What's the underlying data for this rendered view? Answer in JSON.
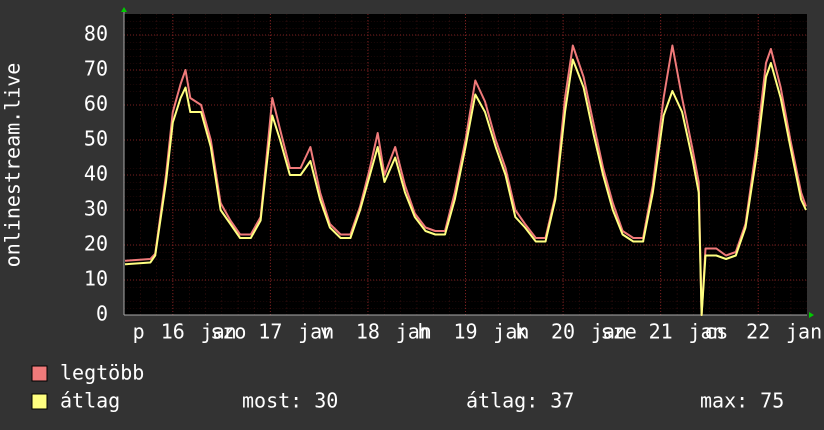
{
  "chart_data": {
    "type": "line",
    "y_label": "onlinestream.live",
    "x": [
      15.51,
      15.77,
      15.82,
      15.93,
      16.0,
      16.08,
      16.13,
      16.18,
      16.29,
      16.39,
      16.49,
      16.59,
      16.69,
      16.8,
      16.9,
      16.95,
      17.02,
      17.1,
      17.2,
      17.31,
      17.41,
      17.51,
      17.61,
      17.72,
      17.82,
      17.92,
      18.02,
      18.1,
      18.17,
      18.28,
      18.38,
      18.48,
      18.59,
      18.69,
      18.79,
      18.89,
      19.0,
      19.1,
      19.2,
      19.31,
      19.41,
      19.51,
      19.61,
      19.72,
      19.82,
      19.92,
      20.02,
      20.1,
      20.21,
      20.31,
      20.41,
      20.51,
      20.61,
      20.72,
      20.82,
      20.92,
      21.03,
      21.12,
      21.22,
      21.33,
      21.39,
      21.42,
      21.46,
      21.57,
      21.67,
      21.77,
      21.87,
      21.98,
      22.08,
      22.13,
      22.23,
      22.33,
      22.44,
      22.49
    ],
    "series": [
      {
        "name": "legtöbb",
        "color": "#f07a7a",
        "values": [
          15.5,
          16,
          17.5,
          40,
          58,
          66,
          70,
          62,
          60,
          50,
          32,
          27,
          23,
          23,
          28,
          42,
          62,
          53,
          42,
          42,
          48,
          35,
          26,
          23,
          23,
          31,
          42,
          52,
          40,
          48,
          37,
          29,
          25,
          24,
          24,
          35,
          50,
          67,
          61,
          50,
          42,
          30,
          26,
          22,
          22,
          34,
          62,
          77,
          68,
          55,
          42,
          32,
          24,
          22,
          22,
          37,
          62,
          77,
          62,
          47,
          38,
          0,
          19,
          19,
          17,
          18,
          26,
          48,
          72,
          76,
          65,
          50,
          35,
          31
        ]
      },
      {
        "name": "átlag",
        "color": "#ffff80",
        "values": [
          14.5,
          15,
          17,
          38,
          55,
          62,
          65,
          58,
          58,
          48,
          30,
          26,
          22,
          22,
          27,
          40,
          57,
          50,
          40,
          40,
          44,
          33,
          25,
          22,
          22,
          30,
          40,
          48,
          38,
          45,
          35,
          28,
          24,
          23,
          23,
          33,
          48,
          63,
          58,
          48,
          40,
          28,
          25,
          21,
          21,
          33,
          58,
          73,
          65,
          52,
          40,
          30,
          23,
          21,
          21,
          35,
          57,
          64,
          58,
          44,
          35,
          0,
          17,
          17,
          16,
          17,
          25,
          45,
          68,
          72,
          62,
          48,
          33,
          30
        ]
      }
    ],
    "xlim": [
      15.5,
      22.5
    ],
    "xticks": [
      {
        "value": 15.65,
        "label": "p"
      },
      {
        "value": 16,
        "label": "16"
      },
      {
        "value": 16.47,
        "label": "jan"
      },
      {
        "value": 16.57,
        "label": "szo"
      },
      {
        "value": 17,
        "label": "17"
      },
      {
        "value": 17.47,
        "label": "jan"
      },
      {
        "value": 17.57,
        "label": "v"
      },
      {
        "value": 18,
        "label": "18"
      },
      {
        "value": 18.47,
        "label": "jan"
      },
      {
        "value": 18.57,
        "label": "h"
      },
      {
        "value": 19,
        "label": "19"
      },
      {
        "value": 19.47,
        "label": "jan"
      },
      {
        "value": 19.57,
        "label": "k"
      },
      {
        "value": 20,
        "label": "20"
      },
      {
        "value": 20.47,
        "label": "jan"
      },
      {
        "value": 20.57,
        "label": "sze"
      },
      {
        "value": 21,
        "label": "21"
      },
      {
        "value": 21.47,
        "label": "jan"
      },
      {
        "value": 21.57,
        "label": "cs"
      },
      {
        "value": 22,
        "label": "22"
      },
      {
        "value": 22.47,
        "label": "jan"
      }
    ],
    "ylim": [
      0,
      86
    ],
    "yticks": [
      0,
      10,
      20,
      30,
      40,
      50,
      60,
      70,
      80
    ],
    "grid": true,
    "grid_color": "#7a1f1f",
    "stats": [
      {
        "label": "most:",
        "value": 30
      },
      {
        "label": "átlag:",
        "value": 37
      },
      {
        "label": "max:",
        "value": 75
      }
    ]
  }
}
